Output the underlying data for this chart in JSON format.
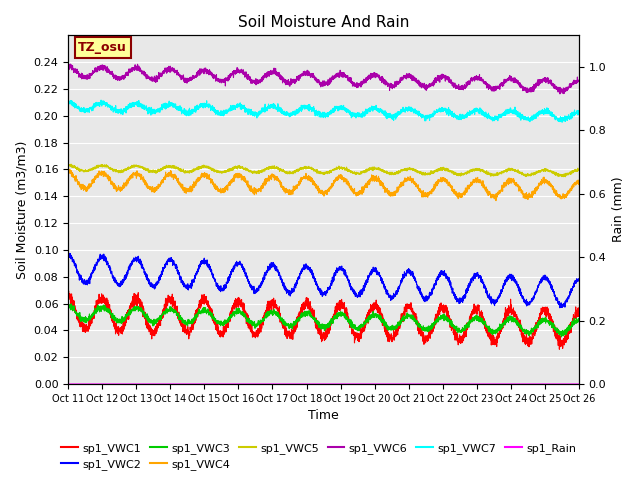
{
  "title": "Soil Moisture And Rain",
  "xlabel": "Time",
  "ylabel_left": "Soil Moisture (m3/m3)",
  "ylabel_right": "Rain (mm)",
  "annotation": "TZ_osu",
  "annotation_color": "#8B0000",
  "annotation_bg": "#FFFF99",
  "background_color": "#E8E8E8",
  "ylim_left": [
    0.0,
    0.26
  ],
  "ylim_right": [
    0.0,
    1.1
  ],
  "n_points": 3600,
  "series": {
    "sp1_VWC1": {
      "color": "red",
      "base": 0.053,
      "amp": 0.012,
      "period": 240,
      "trend": -3e-06,
      "noise": 0.002
    },
    "sp1_VWC2": {
      "color": "blue",
      "base": 0.086,
      "amp": 0.01,
      "period": 240,
      "trend": -5e-06,
      "noise": 0.001
    },
    "sp1_VWC3": {
      "color": "#00CC00",
      "base": 0.053,
      "amp": 0.005,
      "period": 240,
      "trend": -3e-06,
      "noise": 0.001
    },
    "sp1_VWC4": {
      "color": "orange",
      "base": 0.152,
      "amp": 0.006,
      "period": 240,
      "trend": -2e-06,
      "noise": 0.001
    },
    "sp1_VWC5": {
      "color": "#CCCC00",
      "base": 0.161,
      "amp": 0.002,
      "period": 240,
      "trend": -1e-06,
      "noise": 0.0005
    },
    "sp1_VWC6": {
      "color": "#AA00AA",
      "base": 0.233,
      "amp": 0.004,
      "period": 240,
      "trend": -3e-06,
      "noise": 0.001
    },
    "sp1_VWC7": {
      "color": "cyan",
      "base": 0.207,
      "amp": 0.003,
      "period": 240,
      "trend": -2e-06,
      "noise": 0.001
    },
    "sp1_Rain": {
      "color": "magenta",
      "base": 0.0,
      "amp": 0.0,
      "period": 240,
      "trend": 0.0,
      "noise": 0.0
    }
  },
  "xtick_labels": [
    "Oct 11",
    "Oct 12",
    "Oct 13",
    "Oct 14",
    "Oct 15",
    "Oct 16",
    "Oct 17",
    "Oct 18",
    "Oct 19",
    "Oct 20",
    "Oct 21",
    "Oct 22",
    "Oct 23",
    "Oct 24",
    "Oct 25",
    "Oct 26"
  ],
  "xtick_positions": [
    0,
    240,
    480,
    720,
    960,
    1200,
    1440,
    1680,
    1920,
    2160,
    2400,
    2640,
    2880,
    3120,
    3360,
    3600
  ],
  "yticks_left": [
    0.0,
    0.02,
    0.04,
    0.06,
    0.08,
    0.1,
    0.12,
    0.14,
    0.16,
    0.18,
    0.2,
    0.22,
    0.24
  ],
  "yticks_right": [
    0.0,
    0.2,
    0.4,
    0.6,
    0.8,
    1.0
  ],
  "linewidth": 0.8
}
